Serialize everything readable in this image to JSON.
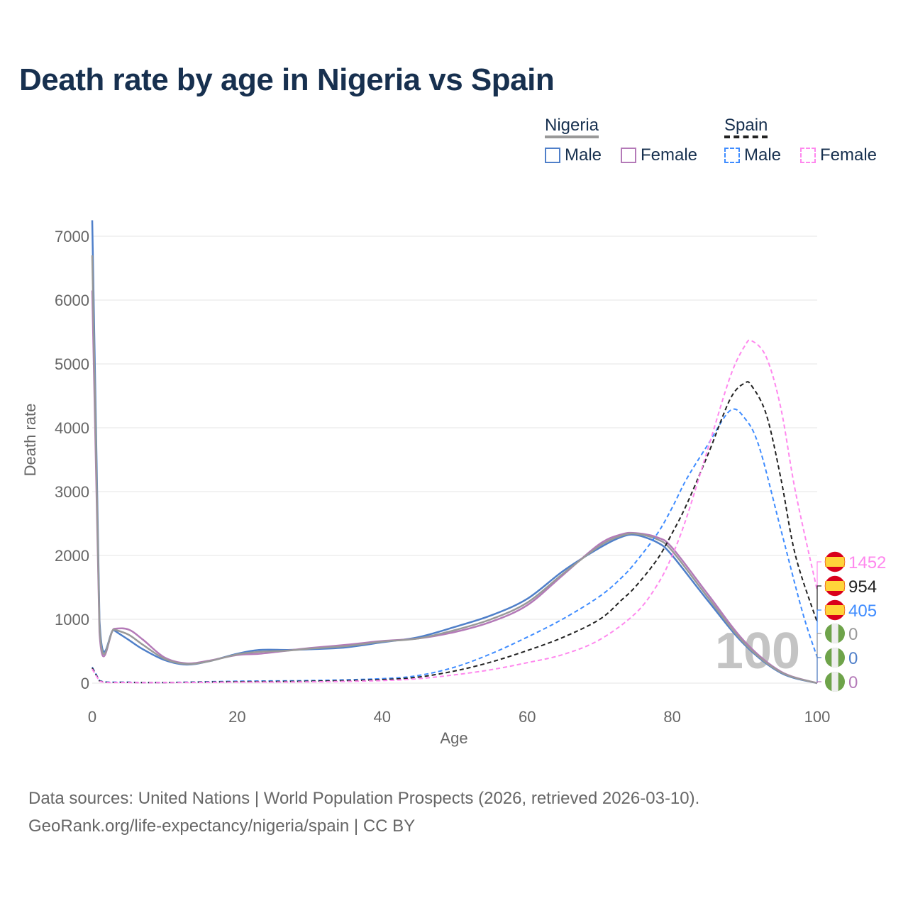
{
  "title": "Death rate by age in Nigeria vs Spain",
  "legend": {
    "groups": [
      {
        "name": "Nigeria",
        "color": "#999999",
        "dashed": false,
        "items": [
          {
            "label": "Male",
            "color": "#4f7fc9"
          },
          {
            "label": "Female",
            "color": "#b47ab8"
          }
        ]
      },
      {
        "name": "Spain",
        "color": "#222222",
        "dashed": true,
        "items": [
          {
            "label": "Male",
            "color": "#3f8cff"
          },
          {
            "label": "Female",
            "color": "#ff88ee"
          }
        ]
      }
    ]
  },
  "footer": {
    "line1": "Data sources: United Nations | World Population Prospects (2026, retrieved 2026-03-10).",
    "line2": "GeoRank.org/life-expectancy/nigeria/spain | CC BY"
  },
  "chart_data": {
    "type": "line",
    "title": "Death rate by age in Nigeria vs Spain",
    "xlabel": "Age",
    "ylabel": "Death rate",
    "xlim": [
      0,
      100
    ],
    "ylim": [
      0,
      7000
    ],
    "xticks": [
      "0",
      "20",
      "40",
      "60",
      "80",
      "100"
    ],
    "yticks": [
      "0",
      "1000",
      "2000",
      "3000",
      "4000",
      "5000",
      "6000",
      "7000"
    ],
    "grid": true,
    "watermark": "100",
    "series": [
      {
        "name": "Spain Female",
        "color": "#ff88ee",
        "dashed": true,
        "x": [
          0,
          1,
          5,
          10,
          20,
          30,
          40,
          45,
          50,
          55,
          60,
          65,
          70,
          75,
          78,
          80,
          82,
          85,
          88,
          90,
          91,
          93,
          95,
          97,
          100
        ],
        "y": [
          220,
          30,
          10,
          8,
          15,
          20,
          40,
          70,
          130,
          210,
          320,
          450,
          680,
          1100,
          1550,
          2000,
          2600,
          3700,
          4800,
          5280,
          5360,
          5100,
          4300,
          3000,
          1452
        ],
        "end_label": "1452",
        "flag": "spain"
      },
      {
        "name": "Spain",
        "color": "#222222",
        "dashed": true,
        "x": [
          0,
          1,
          5,
          10,
          20,
          30,
          40,
          45,
          50,
          55,
          60,
          65,
          70,
          73,
          75,
          78,
          80,
          82,
          85,
          88,
          90,
          91,
          93,
          95,
          97,
          100
        ],
        "y": [
          240,
          35,
          12,
          9,
          22,
          30,
          55,
          95,
          190,
          330,
          510,
          720,
          1000,
          1300,
          1520,
          1950,
          2350,
          2800,
          3600,
          4450,
          4700,
          4650,
          4200,
          3200,
          2000,
          954
        ],
        "end_label": "954",
        "flag": "spain"
      },
      {
        "name": "Spain Male",
        "color": "#3f8cff",
        "dashed": true,
        "x": [
          0,
          1,
          5,
          10,
          20,
          30,
          40,
          45,
          50,
          55,
          60,
          65,
          70,
          73,
          75,
          78,
          80,
          82,
          85,
          88,
          90,
          92,
          95,
          98,
          100
        ],
        "y": [
          250,
          40,
          15,
          10,
          30,
          40,
          70,
          120,
          250,
          460,
          720,
          1010,
          1360,
          1650,
          1900,
          2350,
          2750,
          3200,
          3750,
          4270,
          4150,
          3700,
          2400,
          1100,
          405
        ],
        "end_label": "405",
        "flag": "spain"
      },
      {
        "name": "Nigeria",
        "color": "#999999",
        "dashed": false,
        "x": [
          0,
          1,
          3,
          5,
          7,
          10,
          13,
          16,
          20,
          23,
          27,
          30,
          35,
          40,
          45,
          50,
          55,
          60,
          65,
          70,
          73,
          75,
          78,
          80,
          85,
          90,
          95,
          100
        ],
        "y": [
          6700,
          900,
          840,
          760,
          600,
          380,
          300,
          340,
          450,
          490,
          510,
          540,
          580,
          650,
          700,
          830,
          1000,
          1260,
          1720,
          2150,
          2310,
          2340,
          2250,
          2070,
          1330,
          620,
          170,
          0
        ],
        "end_label": "0",
        "flag": "nigeria"
      },
      {
        "name": "Nigeria Male",
        "color": "#4f7fc9",
        "dashed": false,
        "x": [
          0,
          1,
          3,
          5,
          7,
          10,
          13,
          16,
          20,
          23,
          27,
          30,
          35,
          40,
          45,
          50,
          55,
          60,
          65,
          70,
          73,
          75,
          78,
          80,
          85,
          90,
          95,
          100
        ],
        "y": [
          7250,
          1000,
          830,
          680,
          530,
          360,
          290,
          340,
          460,
          520,
          520,
          530,
          560,
          640,
          720,
          880,
          1060,
          1320,
          1760,
          2120,
          2290,
          2320,
          2200,
          2000,
          1280,
          600,
          160,
          0
        ],
        "end_label": "0",
        "flag": "nigeria"
      },
      {
        "name": "Nigeria Female",
        "color": "#b47ab8",
        "dashed": false,
        "x": [
          0,
          1,
          3,
          5,
          7,
          10,
          13,
          16,
          20,
          23,
          27,
          30,
          35,
          40,
          45,
          50,
          55,
          60,
          65,
          70,
          73,
          75,
          78,
          80,
          85,
          90,
          95,
          100
        ],
        "y": [
          6150,
          800,
          850,
          840,
          680,
          400,
          310,
          350,
          440,
          460,
          510,
          550,
          600,
          660,
          700,
          800,
          960,
          1220,
          1700,
          2180,
          2330,
          2350,
          2280,
          2120,
          1380,
          650,
          180,
          0
        ],
        "end_label": "0",
        "flag": "nigeria"
      }
    ]
  }
}
